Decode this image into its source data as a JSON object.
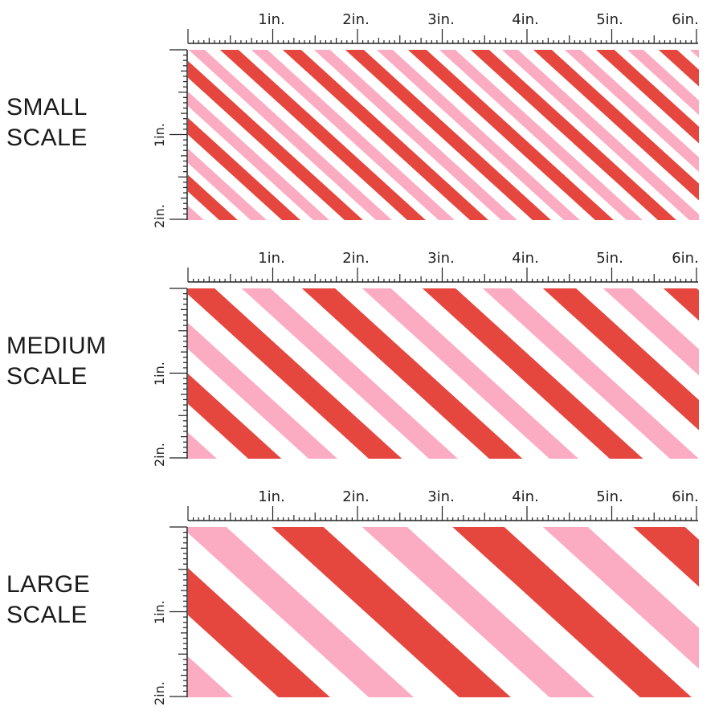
{
  "colors": {
    "red": "#e5473f",
    "pink": "#fbacc3",
    "white": "#ffffff",
    "ruler": "#222222"
  },
  "ruler": {
    "inch_labels": [
      "1in.",
      "2in.",
      "3in.",
      "4in.",
      "5in.",
      "6in."
    ],
    "vertical_labels": [
      "1in.",
      "2in."
    ]
  },
  "panels": [
    {
      "id": "small",
      "label_line1": "SMALL",
      "label_line2": "SCALE",
      "stripe_period": 78,
      "stripe_width": 20
    },
    {
      "id": "medium",
      "label_line1": "MEDIUM",
      "label_line2": "SCALE",
      "stripe_period": 150,
      "stripe_width": 36
    },
    {
      "id": "large",
      "label_line1": "LARGE",
      "label_line2": "SCALE",
      "stripe_period": 225,
      "stripe_width": 56
    }
  ]
}
